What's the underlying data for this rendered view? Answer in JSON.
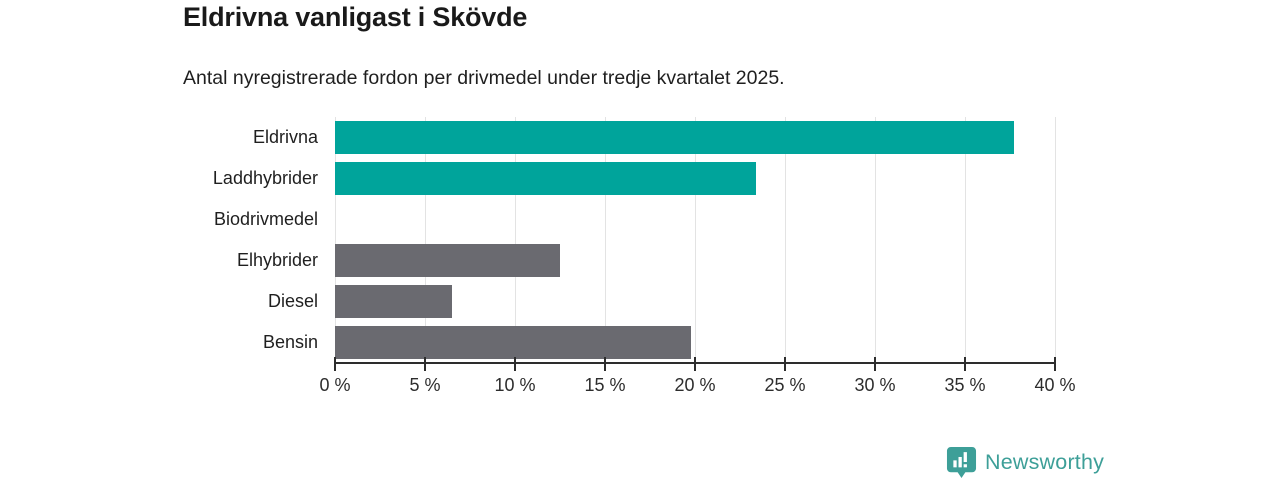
{
  "title": "Eldrivna vanligast i Skövde",
  "subtitle": "Antal nyregistrerade fordon per drivmedel under tredje kvartalet 2025.",
  "branding": {
    "logo_text": "Newsworthy",
    "logo_icon": "newsworthy-chart-pin-icon",
    "logo_color": "#3d9f98"
  },
  "colors": {
    "accent_teal": "#00a49b",
    "neutral_gray": "#6a6a70",
    "gridline": "#e3e3e3",
    "axis": "#2d2d2d",
    "text": "#1f1f1f"
  },
  "chart_data": {
    "type": "bar",
    "orientation": "horizontal",
    "title": "Eldrivna vanligast i Skövde",
    "subtitle": "Antal nyregistrerade fordon per drivmedel under tredje kvartalet 2025.",
    "categories": [
      "Eldrivna",
      "Laddhybrider",
      "Biodrivmedel",
      "Elhybrider",
      "Diesel",
      "Bensin"
    ],
    "values": [
      37.7,
      23.4,
      0,
      12.5,
      6.5,
      19.8
    ],
    "bar_colors": [
      "#00a49b",
      "#00a49b",
      "#00a49b",
      "#6a6a70",
      "#6a6a70",
      "#6a6a70"
    ],
    "unit": "%",
    "xlabel": "",
    "ylabel": "",
    "xlim": [
      0,
      40
    ],
    "x_tick_values": [
      0,
      5,
      10,
      15,
      20,
      25,
      30,
      35,
      40
    ],
    "x_ticks": [
      "0 %",
      "5 %",
      "10 %",
      "15 %",
      "20 %",
      "25 %",
      "30 %",
      "35 %",
      "40 %"
    ],
    "grid": true,
    "legend": false
  }
}
